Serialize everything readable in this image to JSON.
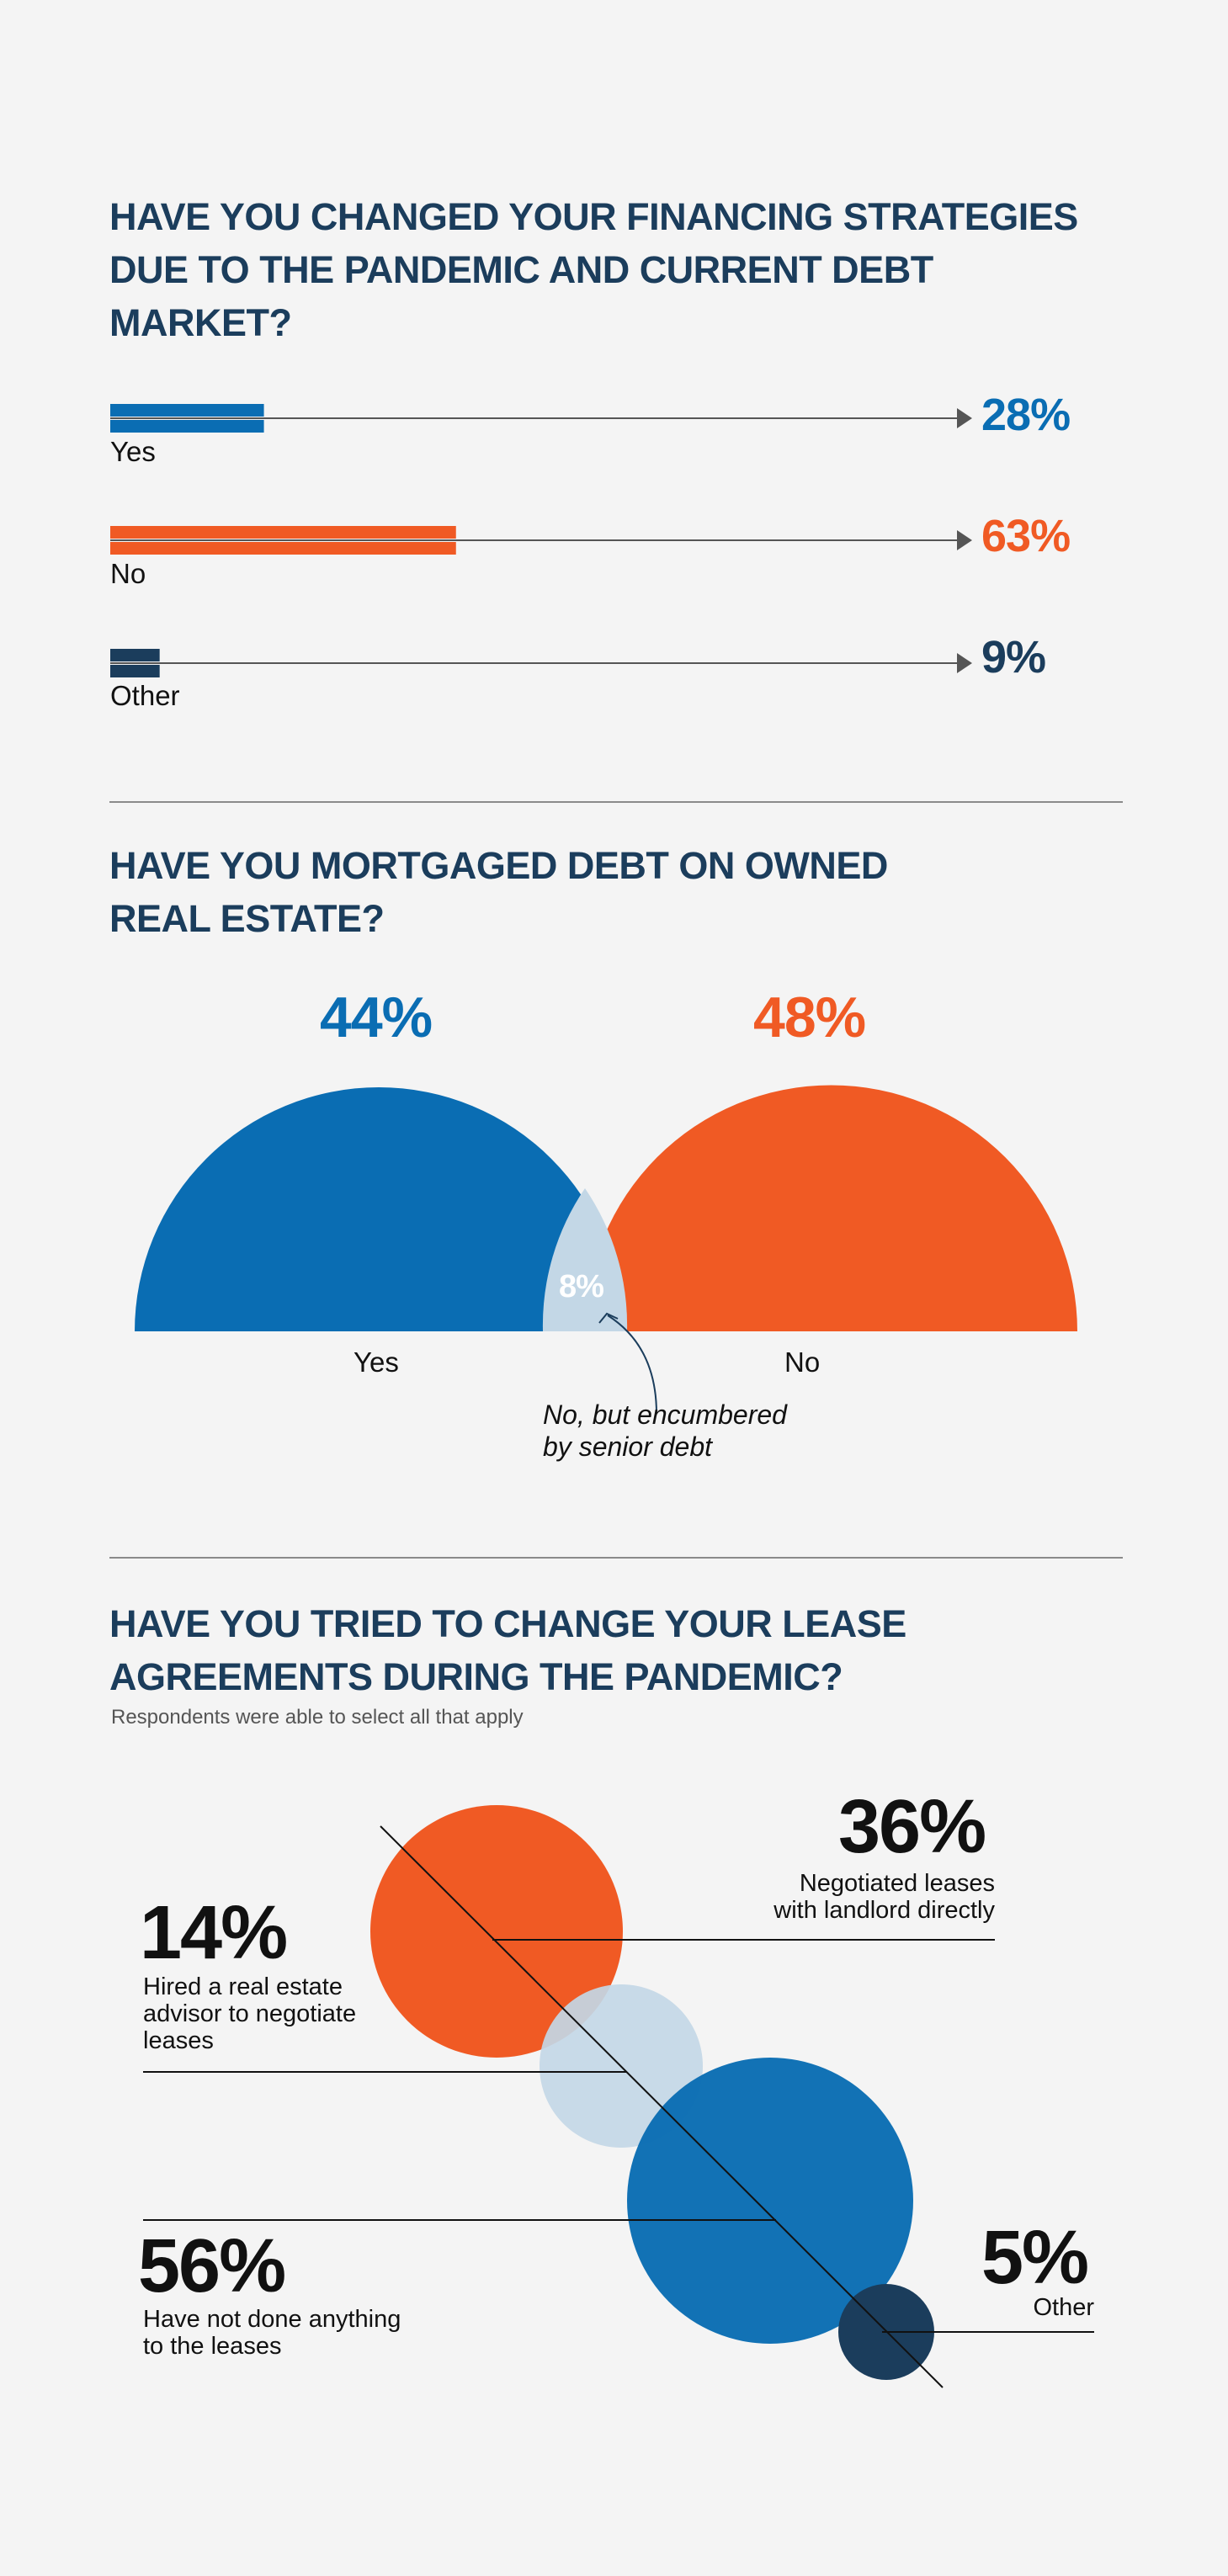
{
  "colors": {
    "blue": "#0a6db3",
    "orange": "#f05a24",
    "navy": "#1b3d5c",
    "light_blue": "#c3d7e6",
    "title": "#1b3d5c"
  },
  "section1": {
    "title_lines": [
      "HAVE YOU CHANGED YOUR FINANCING STRATEGIES",
      "DUE TO THE PANDEMIC AND CURRENT DEBT",
      "MARKET?"
    ]
  },
  "section2": {
    "title_lines": [
      "HAVE YOU MORTGAGED DEBT ON OWNED",
      "REAL ESTATE?"
    ],
    "note_lines": [
      "No, but encumbered",
      "by senior debt"
    ]
  },
  "section3": {
    "title_lines": [
      "HAVE YOU TRIED TO CHANGE YOUR LEASE",
      "AGREEMENTS DURING THE PANDEMIC?"
    ],
    "subtitle": "Respondents were able to select all that apply"
  },
  "chart_data": [
    {
      "type": "bar",
      "title": "HAVE YOU CHANGED YOUR FINANCING STRATEGIES DUE TO THE PANDEMIC AND CURRENT DEBT MARKET?",
      "categories": [
        "Yes",
        "No",
        "Other"
      ],
      "values": [
        28,
        63,
        9
      ],
      "labels": [
        "28%",
        "63%",
        "9%"
      ],
      "colors": [
        "#0a6db3",
        "#f05a24",
        "#1b3d5c"
      ],
      "unit": "%"
    },
    {
      "type": "pie",
      "title": "HAVE YOU MORTGAGED DEBT ON OWNED REAL ESTATE?",
      "categories": [
        "Yes",
        "No",
        "No, but encumbered by senior debt"
      ],
      "values": [
        44,
        48,
        8
      ],
      "labels": [
        "44%",
        "48%",
        "8%"
      ],
      "category_labels": [
        "Yes",
        "No"
      ],
      "colors": [
        "#0a6db3",
        "#f05a24",
        "#c3d7e6"
      ]
    },
    {
      "type": "bubble",
      "title": "HAVE YOU TRIED TO CHANGE YOUR LEASE AGREEMENTS DURING THE PANDEMIC?",
      "categories": [
        "Negotiated leases with landlord directly",
        "Hired a real estate advisor to negotiate leases",
        "Have not done anything to the leases",
        "Other"
      ],
      "values": [
        36,
        14,
        56,
        5
      ],
      "labels": [
        "36%",
        "14%",
        "56%",
        "5%"
      ],
      "desc_lines": [
        [
          "Negotiated leases",
          "with landlord directly"
        ],
        [
          "Hired a real estate",
          "advisor to negotiate",
          "leases"
        ],
        [
          "Have not done anything",
          "to the leases"
        ],
        [
          "Other"
        ]
      ],
      "colors": [
        "#f05a24",
        "#c3d7e6",
        "#0a6db3",
        "#1b3d5c"
      ]
    }
  ]
}
